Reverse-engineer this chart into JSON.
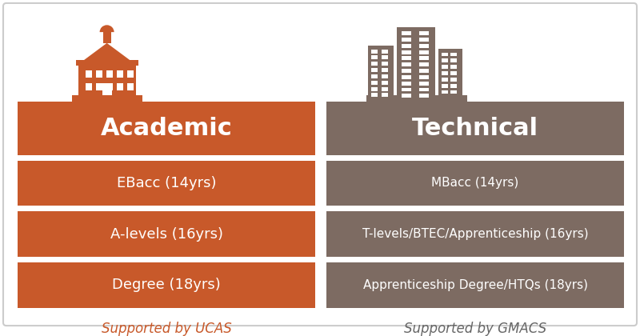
{
  "background_color": "#ffffff",
  "border_color": "#cccccc",
  "academic_color": "#c8592a",
  "technical_color": "#7d6b62",
  "white_text": "#ffffff",
  "orange_text": "#c8592a",
  "gray_text": "#666666",
  "left_title": "Academic",
  "right_title": "Technical",
  "left_items": [
    "EBacc (14yrs)",
    "A-levels (16yrs)",
    "Degree (18yrs)"
  ],
  "right_items": [
    "MBacc (14yrs)",
    "T-levels/BTEC/Apprenticeship (16yrs)",
    "Apprenticeship Degree/HTQs (18yrs)"
  ],
  "left_footer": "Supported by UCAS",
  "right_footer": "Supported by GMACS",
  "fig_width": 8.0,
  "fig_height": 4.2
}
